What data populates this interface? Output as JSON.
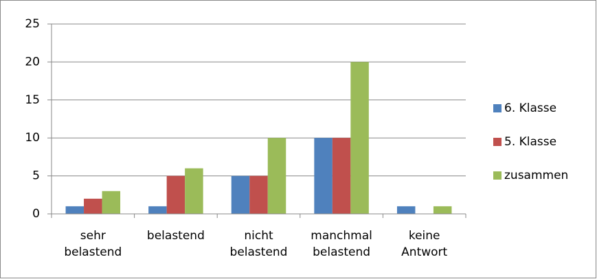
{
  "chart_data": {
    "type": "bar",
    "categories": [
      "sehr belastend",
      "belastend",
      "nicht belastend",
      "manchmal belastend",
      "keine Antwort"
    ],
    "series": [
      {
        "name": "6. Klasse",
        "color": "#4f81bd",
        "values": [
          1,
          1,
          5,
          10,
          1
        ]
      },
      {
        "name": "5. Klasse",
        "color": "#c0504d",
        "values": [
          2,
          5,
          5,
          10,
          0
        ]
      },
      {
        "name": "zusammen",
        "color": "#9bbb59",
        "values": [
          3,
          6,
          10,
          20,
          1
        ]
      }
    ],
    "ylim": [
      0,
      25
    ],
    "yticks": [
      0,
      5,
      10,
      15,
      20,
      25
    ],
    "grid": true,
    "legend": "right"
  }
}
